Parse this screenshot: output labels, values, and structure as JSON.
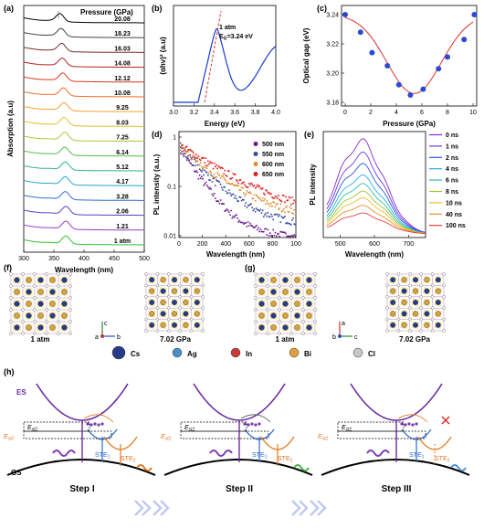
{
  "panel_labels": [
    "(a)",
    "(b)",
    "(c)",
    "(d)",
    "(e)",
    "(f)",
    "(g)",
    "(h)"
  ],
  "chart_data": [
    {
      "panel": "a",
      "type": "line",
      "title": "Pressure (GPa)",
      "xlabel": "Wavelength (nm)",
      "ylabel": "Absorption (a.u)",
      "xlim": [
        300,
        500
      ],
      "xticks": [
        "300",
        "350",
        "400",
        "450",
        "500"
      ],
      "series_labels": [
        "20.08",
        "18.23",
        "16.03",
        "14.08",
        "12.12",
        "10.08",
        "9.25",
        "8.03",
        "7.25",
        "6.14",
        "5.12",
        "4.17",
        "3.28",
        "2.06",
        "1.21",
        "1 atm"
      ],
      "series_colors": [
        "#000000",
        "#444444",
        "#7a2a2a",
        "#b22222",
        "#e0341f",
        "#ef6a2a",
        "#f5a12e",
        "#dcc22a",
        "#a7c93a",
        "#55b94a",
        "#2fb38a",
        "#23a8c8",
        "#2f6fd0",
        "#5a3fc8",
        "#9a3cc8",
        "#2ec22e"
      ],
      "peak_wavelength_nm": [
        360,
        362,
        363,
        364,
        365,
        366,
        367,
        367,
        368,
        368,
        369,
        369,
        369,
        370,
        370,
        370
      ]
    },
    {
      "panel": "b",
      "type": "line",
      "xlabel": "Energy (eV)",
      "ylabel": "(αhν)² (a.u)",
      "xlim": [
        3.0,
        4.0
      ],
      "xticks": [
        "3.0",
        "3.2",
        "3.4",
        "3.6",
        "3.8",
        "4.0"
      ],
      "annotation_line1": "1 atm",
      "annotation_line2": "E",
      "annotation_sub": "G",
      "annotation_value": "=3.24 eV"
    },
    {
      "panel": "c",
      "type": "scatter",
      "xlabel": "Pressure (GPa)",
      "ylabel": "Optical gap (eV)",
      "xlim": [
        0,
        10
      ],
      "ylim": [
        3.18,
        3.24
      ],
      "xticks": [
        "0",
        "2",
        "4",
        "6",
        "8",
        "10"
      ],
      "yticks": [
        "3.18",
        "3.20",
        "3.22",
        "3.24"
      ],
      "x": [
        0,
        1.2,
        2.1,
        3.3,
        4.2,
        5.1,
        6.1,
        7.3,
        8.0,
        9.3,
        10.1
      ],
      "y": [
        3.24,
        3.228,
        3.214,
        3.205,
        3.192,
        3.185,
        3.189,
        3.203,
        3.211,
        3.223,
        3.24
      ]
    },
    {
      "panel": "d",
      "type": "scatter",
      "xlabel": "Wavelength (nm)",
      "ylabel": "PL intensity (a.u.)",
      "xlim": [
        0,
        1000
      ],
      "scale_y": "log",
      "xticks": [
        "0",
        "200",
        "400",
        "600",
        "800",
        "100"
      ],
      "yticks": [
        "1",
        "0.1",
        "0.01"
      ],
      "series": [
        {
          "name": "500 nm",
          "color": "#6a1a8a"
        },
        {
          "name": "550 nm",
          "color": "#3a4aa0"
        },
        {
          "name": "600 nm",
          "color": "#e08a2a"
        },
        {
          "name": "650 nm",
          "color": "#e02020"
        }
      ]
    },
    {
      "panel": "e",
      "type": "line",
      "xlabel": "Wavelength (nm)",
      "ylabel": "PL intensity",
      "xlim": [
        450,
        750
      ],
      "xticks": [
        "500",
        "600",
        "700"
      ],
      "series": [
        {
          "name": "0 ns",
          "color": "#8a2ad0",
          "peak": 1.0
        },
        {
          "name": "1 ns",
          "color": "#6a3ae0",
          "peak": 0.86
        },
        {
          "name": "2 ns",
          "color": "#2a5ae0",
          "peak": 0.74
        },
        {
          "name": "4 ns",
          "color": "#2ab0e0",
          "peak": 0.62
        },
        {
          "name": "6 ns",
          "color": "#2ac0a0",
          "peak": 0.53
        },
        {
          "name": "8 ns",
          "color": "#9ac82a",
          "peak": 0.45
        },
        {
          "name": "10 ns",
          "color": "#e8c02a",
          "peak": 0.38
        },
        {
          "name": "40 ns",
          "color": "#e8902a",
          "peak": 0.3
        },
        {
          "name": "100 ns",
          "color": "#e84040",
          "peak": 0.22
        }
      ]
    }
  ],
  "structures": {
    "f_left": "1 atm",
    "f_right": "7.02 GPa",
    "g_left": "1 atm",
    "g_right": "7.02 GPa",
    "axes_f": {
      "a": "a",
      "b": "b",
      "c": "c"
    },
    "axes_g": {
      "a": "a",
      "b": "b",
      "c": "c"
    }
  },
  "legend_atoms": [
    {
      "name": "Cs",
      "color": "#2a3a8a"
    },
    {
      "name": "Ag",
      "color": "#4a90c8"
    },
    {
      "name": "In",
      "color": "#c83a3a"
    },
    {
      "name": "Bi",
      "color": "#e0a040"
    },
    {
      "name": "Cl",
      "color": "#c8c8c8"
    }
  ],
  "scheme": {
    "es": "ES",
    "gs": "GS",
    "est1": "E",
    "est1_sub": "st1",
    "est2": "E",
    "est2_sub": "st2",
    "ste1": "STE",
    "ste1_sub": "1",
    "ste2": "STE",
    "ste2_sub": "2",
    "steps": [
      "Step I",
      "Step II",
      "Step III"
    ]
  }
}
